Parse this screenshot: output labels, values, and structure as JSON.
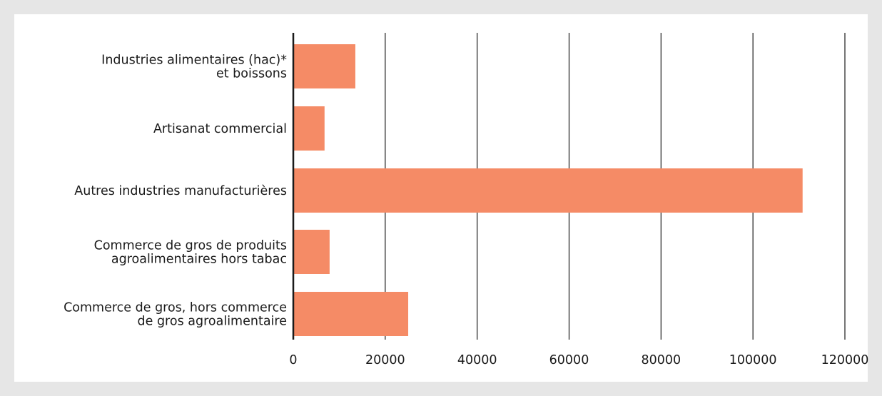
{
  "chart_data": {
    "type": "bar",
    "orientation": "horizontal",
    "title": "",
    "xlabel": "",
    "ylabel": "",
    "categories": [
      [
        "Industries alimentaires (hac)*",
        "et boissons"
      ],
      [
        "Artisanat commercial"
      ],
      [
        "Autres industries manufacturières"
      ],
      [
        "Commerce de gros de produits",
        "agroalimentaires hors tabac"
      ],
      [
        "Commerce de gros, hors commerce",
        "de gros agroalimentaire"
      ]
    ],
    "values": [
      13500,
      6800,
      110800,
      7900,
      25000
    ],
    "xlim": [
      0,
      120000
    ],
    "xticks": [
      0,
      20000,
      40000,
      60000,
      80000,
      100000,
      120000
    ],
    "xtick_labels": [
      "0",
      "20000",
      "40000",
      "60000",
      "80000",
      "100000",
      "120000"
    ],
    "grid": "vertical",
    "legend": "none",
    "colors": {
      "bar": "#f58b66",
      "grid": "#1a1a1a",
      "background": "#e6e6e6",
      "panel": "#ffffff"
    }
  }
}
